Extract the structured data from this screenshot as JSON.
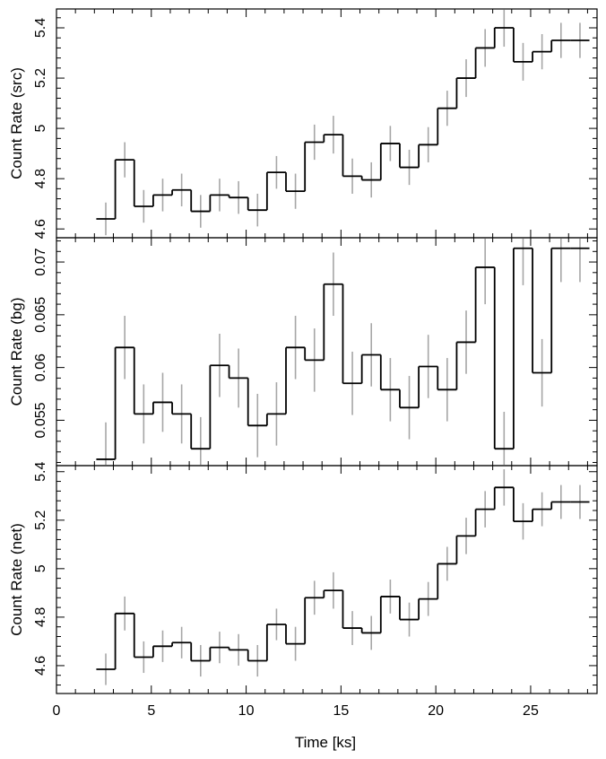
{
  "chart_data": [
    {
      "type": "line",
      "id": "src",
      "ylabel": "Count Rate (src)",
      "ylim": [
        4.565,
        5.475
      ],
      "yticks": [
        4.6,
        4.8,
        5,
        5.2,
        5.4
      ],
      "ytick_labels": [
        "4.6",
        "4.8",
        "5",
        "5.2",
        "5.4"
      ],
      "x": [
        2.6,
        3.6,
        4.6,
        5.6,
        6.6,
        7.6,
        8.6,
        9.6,
        10.6,
        11.6,
        12.6,
        13.6,
        14.6,
        15.6,
        16.6,
        17.6,
        18.6,
        19.6,
        20.6,
        21.6,
        22.6,
        23.6,
        24.6,
        25.6,
        26.6,
        27.6
      ],
      "y": [
        4.64,
        4.875,
        4.69,
        4.735,
        4.755,
        4.67,
        4.735,
        4.725,
        4.675,
        4.825,
        4.75,
        4.945,
        4.975,
        4.81,
        4.795,
        4.94,
        4.845,
        4.935,
        5.08,
        5.2,
        5.32,
        5.4,
        5.265,
        5.305,
        5.35,
        5.35
      ],
      "err": [
        0.065,
        0.07,
        0.065,
        0.065,
        0.065,
        0.065,
        0.065,
        0.065,
        0.065,
        0.065,
        0.07,
        0.07,
        0.075,
        0.07,
        0.07,
        0.07,
        0.07,
        0.07,
        0.07,
        0.075,
        0.075,
        0.075,
        0.075,
        0.07,
        0.07,
        0.07
      ],
      "xlim": [
        0,
        28.5
      ],
      "bin_width": 1.0
    },
    {
      "type": "line",
      "id": "bg",
      "ylabel": "Count Rate (bg)",
      "ylim": [
        0.0507,
        0.0723
      ],
      "yticks": [
        0.055,
        0.06,
        0.065,
        0.07
      ],
      "ytick_labels": [
        "0.055",
        "0.06",
        "0.065",
        "0.07"
      ],
      "x": [
        2.6,
        3.6,
        4.6,
        5.6,
        6.6,
        7.6,
        8.6,
        9.6,
        10.6,
        11.6,
        12.6,
        13.6,
        14.6,
        15.6,
        16.6,
        17.6,
        18.6,
        19.6,
        20.6,
        21.6,
        22.6,
        23.6,
        24.6,
        25.6,
        26.6,
        27.6
      ],
      "y": [
        0.0513,
        0.0619,
        0.0556,
        0.0567,
        0.0556,
        0.0523,
        0.0602,
        0.059,
        0.0545,
        0.0556,
        0.0619,
        0.0607,
        0.0679,
        0.0585,
        0.0612,
        0.0579,
        0.0562,
        0.0601,
        0.0579,
        0.0624,
        0.0695,
        0.0523,
        0.0713,
        0.0595,
        0.0713,
        0.0713
      ],
      "err": [
        0.0035,
        0.003,
        0.0028,
        0.0028,
        0.0028,
        0.003,
        0.003,
        0.0028,
        0.003,
        0.003,
        0.003,
        0.003,
        0.003,
        0.003,
        0.003,
        0.003,
        0.003,
        0.003,
        0.003,
        0.003,
        0.0035,
        0.0035,
        0.0035,
        0.0032,
        0.0032,
        0.0032
      ],
      "xlim": [
        0,
        28.5
      ],
      "bin_width": 1.0
    },
    {
      "type": "line",
      "id": "net",
      "ylabel": "Count Rate (net)",
      "ylim": [
        4.485,
        5.425
      ],
      "yticks": [
        4.6,
        4.8,
        5,
        5.2,
        5.4
      ],
      "ytick_labels": [
        "4.6",
        "4.8",
        "5",
        "5.2",
        "5.4"
      ],
      "x": [
        2.6,
        3.6,
        4.6,
        5.6,
        6.6,
        7.6,
        8.6,
        9.6,
        10.6,
        11.6,
        12.6,
        13.6,
        14.6,
        15.6,
        16.6,
        17.6,
        18.6,
        19.6,
        20.6,
        21.6,
        22.6,
        23.6,
        24.6,
        25.6,
        26.6,
        27.6
      ],
      "y": [
        4.585,
        4.815,
        4.635,
        4.68,
        4.695,
        4.62,
        4.675,
        4.665,
        4.62,
        4.77,
        4.69,
        4.88,
        4.91,
        4.755,
        4.735,
        4.885,
        4.79,
        4.875,
        5.02,
        5.135,
        5.245,
        5.335,
        5.195,
        5.245,
        5.275,
        5.275
      ],
      "err": [
        0.065,
        0.07,
        0.065,
        0.065,
        0.065,
        0.065,
        0.065,
        0.065,
        0.065,
        0.065,
        0.07,
        0.07,
        0.075,
        0.07,
        0.07,
        0.07,
        0.07,
        0.07,
        0.07,
        0.075,
        0.075,
        0.075,
        0.075,
        0.07,
        0.07,
        0.07
      ],
      "xlim": [
        0,
        28.5
      ],
      "bin_width": 1.0
    }
  ],
  "x_axis": {
    "label": "Time [ks]",
    "ticks": [
      0,
      5,
      10,
      15,
      20,
      25
    ],
    "tick_labels": [
      "0",
      "5",
      "10",
      "15",
      "20",
      "25"
    ]
  },
  "colors": {
    "step_line": "#000000",
    "error_bar": "#a6a6a6",
    "frame": "#000000"
  }
}
